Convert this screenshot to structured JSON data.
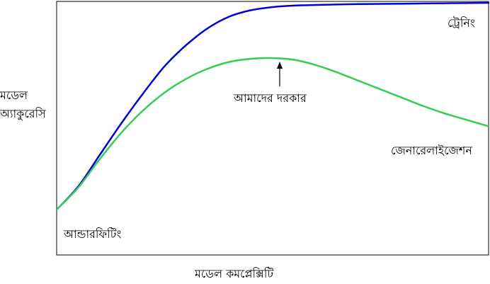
{
  "chart_data": {
    "type": "line",
    "xlabel": "মডেল কমপ্লেক্সিটি",
    "ylabel_lines": [
      "মডেল",
      "অ্যাকুরেসি"
    ],
    "xlim": [
      0,
      10
    ],
    "ylim": [
      0,
      10
    ],
    "grid": false,
    "series": [
      {
        "name": "ট্রেনিং",
        "color": "#0000dd",
        "x": [
          0,
          0.5,
          1,
          1.5,
          2,
          2.5,
          3,
          3.5,
          4,
          4.5,
          5,
          5.5,
          6,
          7,
          8,
          9,
          10
        ],
        "y": [
          0.2,
          1.3,
          2.8,
          4.3,
          5.7,
          7.0,
          8.0,
          8.8,
          9.35,
          9.65,
          9.8,
          9.87,
          9.9,
          9.94,
          9.96,
          9.98,
          10.0
        ]
      },
      {
        "name": "জেনারেলাইজেশন",
        "color": "#33cc55",
        "x": [
          0,
          0.5,
          1,
          1.5,
          2,
          2.5,
          3,
          3.5,
          4,
          4.5,
          5,
          5.5,
          6,
          6.5,
          7,
          7.5,
          8,
          8.5,
          9,
          9.5,
          10
        ],
        "y": [
          0.2,
          1.25,
          2.6,
          3.85,
          4.9,
          5.75,
          6.4,
          6.88,
          7.2,
          7.35,
          7.38,
          7.3,
          7.05,
          6.7,
          6.3,
          5.9,
          5.5,
          5.1,
          4.75,
          4.45,
          4.15
        ]
      }
    ],
    "annotations": [
      {
        "text": "আমাদের দরকার",
        "arrow_to_x": 5.15,
        "arrow_to_y": 7.38
      },
      {
        "text": "আন্ডারফিটিং",
        "at_x": 0,
        "at_y": 0
      }
    ]
  }
}
